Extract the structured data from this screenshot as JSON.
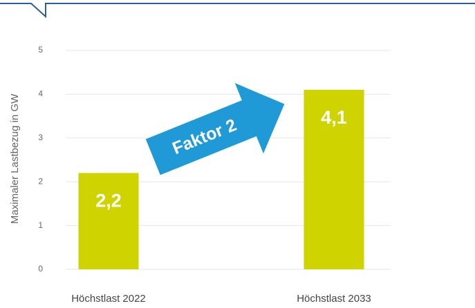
{
  "chart_data": {
    "type": "bar",
    "ylabel": "Maximaler Lastbezug in GW",
    "categories": [
      "Höchstlast 2022",
      "Höchstlast 2033"
    ],
    "values": [
      2.2,
      4.1
    ],
    "value_labels": [
      "2,2",
      "4,1"
    ],
    "color": "#cfd300",
    "ylim": [
      0,
      5
    ],
    "yticks": [
      0,
      1,
      2,
      3,
      4,
      5
    ],
    "grid": true,
    "annotation": "Faktor 2"
  }
}
